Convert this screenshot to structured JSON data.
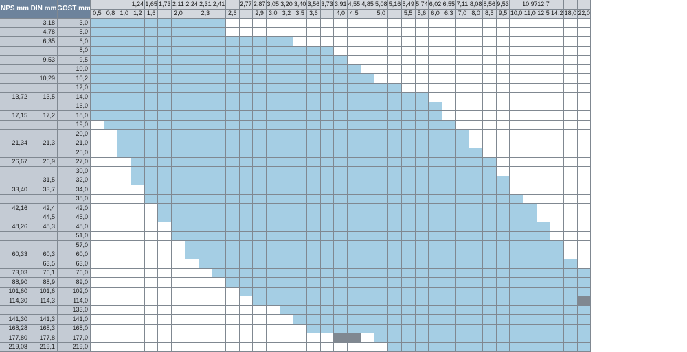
{
  "type": "heatmap-table",
  "colors": {
    "header_label_bg": "#6d839c",
    "header_label_fg": "#ffffff",
    "header_top_bg": "#d4d8de",
    "row_label_bg": "#c4cbd4",
    "fill": "#a5cee4",
    "empty": "#ffffff",
    "gray": "#808891",
    "grid": "#808891"
  },
  "label_columns": [
    "NPS mm",
    "DIN mm",
    "GOST mm"
  ],
  "label_widths": [
    44,
    40,
    48
  ],
  "data_col_width": 19.7,
  "top_header_1": [
    "",
    "",
    "",
    "1,24",
    "1,65",
    "1,73",
    "2,11",
    "2,24",
    "2,31",
    "2,41",
    "",
    "2,77",
    "2,87",
    "3,05",
    "3,20",
    "3,40",
    "3,56",
    "3,73",
    "3,91",
    "4,55",
    "4,85",
    "5,08",
    "5,16",
    "5,49",
    "5,74",
    "6,02",
    "6,55",
    "7,11",
    "8,08",
    "8,56",
    "9,53",
    "",
    "10,97",
    "12,7",
    "",
    "",
    ""
  ],
  "top_header_2": [
    "0,5",
    "0,8",
    "1,0",
    "1,2",
    "1,6",
    "",
    "2,0",
    "",
    "2,3",
    "",
    "2,6",
    "",
    "2,9",
    "3,0",
    "3,2",
    "3,5",
    "3,6",
    "",
    "4,0",
    "4,5",
    "",
    "5,0",
    "",
    "5,5",
    "5,6",
    "6,0",
    "6,3",
    "7,0",
    "8,0",
    "8,5",
    "9,5",
    "10,0",
    "11,0",
    "12,5",
    "14,2",
    "18,0",
    "22,0"
  ],
  "rows": [
    {
      "labels": [
        "",
        "3,18",
        "3,0"
      ],
      "cells": "FFFFFFFFFF...........................",
      "over": {}
    },
    {
      "labels": [
        "",
        "4,78",
        "5,0"
      ],
      "cells": "FFFFFFFFFF...........................",
      "over": {}
    },
    {
      "labels": [
        "",
        "6,35",
        "6,0"
      ],
      "cells": "FFFFFFFFFFFFFFF......................",
      "over": {}
    },
    {
      "labels": [
        "",
        "",
        "8,0"
      ],
      "cells": "FFFFFFFFFFFFFFFFFF...................",
      "over": {}
    },
    {
      "labels": [
        "",
        "9,53",
        "9,5"
      ],
      "cells": "FFFFFFFFFFFFFFFFFFF..................",
      "over": {}
    },
    {
      "labels": [
        "",
        "",
        "10,0"
      ],
      "cells": "FFFFFFFFFFFFFFFFFFFF.................",
      "over": {}
    },
    {
      "labels": [
        "",
        "10,29",
        "10,2"
      ],
      "cells": "FFFFFFFFFFFFFFFFFFFFF................",
      "over": {}
    },
    {
      "labels": [
        "",
        "",
        "12,0"
      ],
      "cells": "FFFFFFFFFFFFFFFFFFFFFFF..............",
      "over": {}
    },
    {
      "labels": [
        "13,72",
        "13,5",
        "14,0"
      ],
      "cells": "FFFFFFFFFFFFFFFFFFFFFFFFF............",
      "over": {}
    },
    {
      "labels": [
        "",
        "",
        "16,0"
      ],
      "cells": "FFFFFFFFFFFFFFFFFFFFFFFFFF...........",
      "over": {}
    },
    {
      "labels": [
        "17,15",
        "17,2",
        "18,0"
      ],
      "cells": "FFFFFFFFFFFFFFFFFFFFFFFFFF...........",
      "over": {}
    },
    {
      "labels": [
        "",
        "",
        "19,0"
      ],
      "cells": ".FFFFFFFFFFFFFFFFFFFFFFFFFF..........",
      "over": {}
    },
    {
      "labels": [
        "",
        "",
        "20,0"
      ],
      "cells": "..FFFFFFFFFFFFFFFFFFFFFFFFFF.........",
      "over": {}
    },
    {
      "labels": [
        "21,34",
        "21,3",
        "21,0"
      ],
      "cells": "..FFFFFFFFFFFFFFFFFFFFFFFFFF.........",
      "over": {}
    },
    {
      "labels": [
        "",
        "",
        "25,0"
      ],
      "cells": "..FFFFFFFFFFFFFFFFFFFFFFFFFFF........",
      "over": {}
    },
    {
      "labels": [
        "26,67",
        "26,9",
        "27,0"
      ],
      "cells": "...FFFFFFFFFFFFFFFFFFFFFFFFFFF.......",
      "over": {}
    },
    {
      "labels": [
        "",
        "",
        "30,0"
      ],
      "cells": "...FFFFFFFFFFFFFFFFFFFFFFFFFFF.......",
      "over": {}
    },
    {
      "labels": [
        "",
        "31,5",
        "32,0"
      ],
      "cells": "...FFFFFFFFFFFFFFFFFFFFFFFFFFFF......",
      "over": {}
    },
    {
      "labels": [
        "33,40",
        "33,7",
        "34,0"
      ],
      "cells": "....FFFFFFFFFFFFFFFFFFFFFFFFFFF......",
      "over": {}
    },
    {
      "labels": [
        "",
        "",
        "38,0"
      ],
      "cells": "....FFFFFFFFFFFFFFFFFFFFFFFFFFFF.....",
      "over": {}
    },
    {
      "labels": [
        "42,16",
        "42,4",
        "42,0"
      ],
      "cells": ".....FFFFFFFFFFFFFFFFFFFFFFFFFFFF....",
      "over": {}
    },
    {
      "labels": [
        "",
        "44,5",
        "45,0"
      ],
      "cells": ".....FFFFFFFFFFFFFFFFFFFFFFFFFFFF....",
      "over": {}
    },
    {
      "labels": [
        "48,26",
        "48,3",
        "48,0"
      ],
      "cells": "......FFFFFFFFFFFFFFFFFFFFFFFFFFFF...",
      "over": {}
    },
    {
      "labels": [
        "",
        "",
        "51,0"
      ],
      "cells": "......FFFFFFFFFFFFFFFFFFFFFFFFFFFF...",
      "over": {}
    },
    {
      "labels": [
        "",
        "",
        "57,0"
      ],
      "cells": ".......FFFFFFFFFFFFFFFFFFFFFFFFFFFF..",
      "over": {}
    },
    {
      "labels": [
        "60,33",
        "60,3",
        "60,0"
      ],
      "cells": ".......FFFFFFFFFFFFFFFFFFFFFFFFFFFF..",
      "over": {}
    },
    {
      "labels": [
        "",
        "63,5",
        "63,0"
      ],
      "cells": "........FFFFFFFFFFFFFFFFFFFFFFFFFFFF.",
      "over": {}
    },
    {
      "labels": [
        "73,03",
        "76,1",
        "76,0"
      ],
      "cells": ".........FFFFFFFFFFFFFFFFFFFFFFFFFFFF",
      "over": {}
    },
    {
      "labels": [
        "88,90",
        "88,9",
        "89,0"
      ],
      "cells": "..........FFFFFFFFFFFFFFFFFFFFFFFFFFF",
      "over": {}
    },
    {
      "labels": [
        "101,60",
        "101,6",
        "102,0"
      ],
      "cells": "...........FFFFFFFFFFFFFFFFFFFFFFFFFF",
      "over": {}
    },
    {
      "labels": [
        "114,30",
        "114,3",
        "114,0"
      ],
      "cells": "............FFFFFFFFFFFFFFFFFFFFFFFFG",
      "over": {}
    },
    {
      "labels": [
        "",
        "",
        "133,0"
      ],
      "cells": "..............FFFFFFFFFFFFFFFFFFFFFFF",
      "over": {}
    },
    {
      "labels": [
        "141,30",
        "141,3",
        "141,0"
      ],
      "cells": "...............FFFFFFFFFFFFFFFFFFFFFF",
      "over": {}
    },
    {
      "labels": [
        "168,28",
        "168,3",
        "168,0"
      ],
      "cells": "................FFFFFFFFFFFFFFFFFFFFF",
      "over": {}
    },
    {
      "labels": [
        "177,80",
        "177,8",
        "177,0"
      ],
      "cells": "..................GG.FFFFFFFFFFFFFFFF",
      "over": {}
    },
    {
      "labels": [
        "219,08",
        "219,1",
        "219,0"
      ],
      "cells": "......................FFFFFFFFFFFFFFF",
      "over": {}
    }
  ]
}
